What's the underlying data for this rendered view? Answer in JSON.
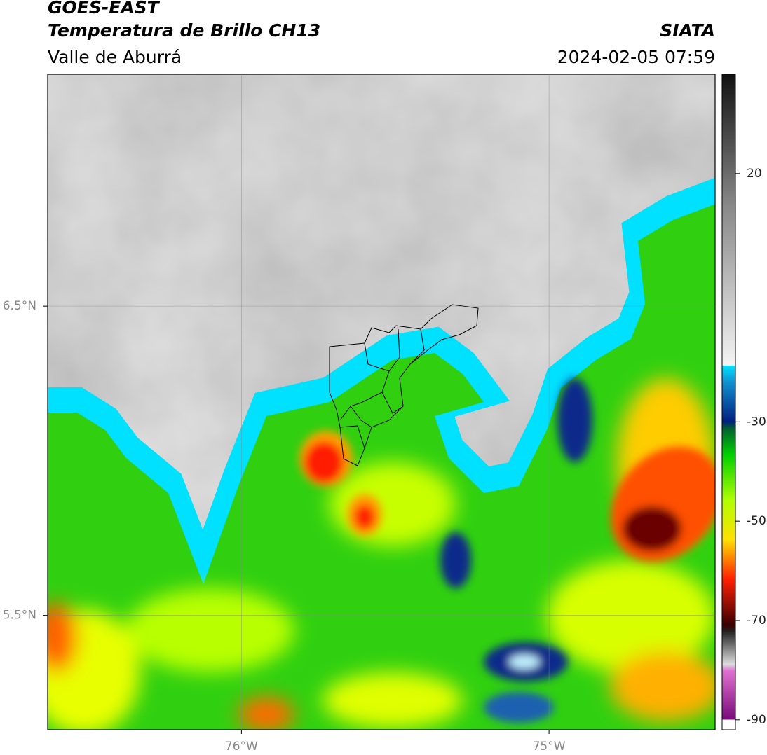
{
  "chart_data": {
    "type": "map",
    "title": "GOES-EAST",
    "subtitle": "Temperatura de Brillo CH13",
    "region": "Valle de Aburrá",
    "source": "SIATA",
    "datetime": "2024-02-05 07:59",
    "xlim": [
      -76.63,
      -74.46
    ],
    "ylim": [
      5.13,
      7.25
    ],
    "xticks": [
      {
        "value": -76,
        "label": "76°W"
      },
      {
        "value": -75,
        "label": "75°W"
      }
    ],
    "yticks": [
      {
        "value": 6.5,
        "label": "6.5°N"
      },
      {
        "value": 5.5,
        "label": "5.5°N"
      }
    ],
    "grid": true,
    "colorbar": {
      "lim": [
        -92,
        40
      ],
      "ticks": [
        20,
        -30,
        -50,
        -70,
        -90
      ]
    }
  }
}
